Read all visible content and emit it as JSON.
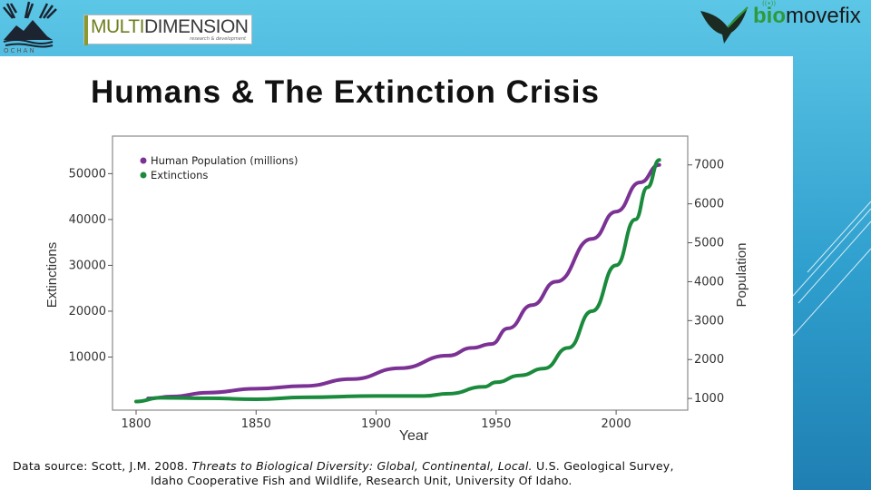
{
  "header": {
    "left_logo_caption": "OCHAN",
    "multidimension_logo": {
      "part1": "MULTI",
      "part2": "DIMENSION",
      "tagline": "research & development"
    },
    "biomovefix_logo": {
      "bio": "bio",
      "rest": "movefix"
    }
  },
  "slide": {
    "title": "Humans & The Extinction Crisis",
    "source_prefix": "Data source: Scott, J.M. 2008. ",
    "source_italic": "Threats to Biological Diversity: Global, Continental, Local.",
    "source_suffix": " U.S. Geological Survey,",
    "source_line2": "Idaho Cooperative Fish and Wildlife, Research Unit, University Of Idaho."
  },
  "chart_data": {
    "type": "line",
    "title": "",
    "xlabel": "Year",
    "ylabel_left": "Extinctions",
    "ylabel_right": "Population",
    "xlim": [
      1800,
      2020
    ],
    "ylim_left": [
      0,
      57000
    ],
    "ylim_right": [
      700,
      7600
    ],
    "x_ticks": [
      "1800",
      "1850",
      "1900",
      "1950",
      "2000"
    ],
    "y_left_ticks": [
      "10000",
      "20000",
      "30000",
      "40000",
      "50000"
    ],
    "y_right_ticks": [
      "1000",
      "2000",
      "3000",
      "4000",
      "5000",
      "6000",
      "7000"
    ],
    "legend_position": "top-left",
    "series": [
      {
        "name": "Human Population (millions)",
        "axis": "right",
        "color": "#7b3294",
        "x": [
          1805,
          1815,
          1830,
          1850,
          1870,
          1890,
          1910,
          1930,
          1940,
          1948,
          1955,
          1965,
          1975,
          1990,
          2000,
          2010,
          2018
        ],
        "values": [
          1000,
          1050,
          1150,
          1250,
          1320,
          1500,
          1780,
          2100,
          2300,
          2400,
          2800,
          3400,
          4000,
          5100,
          5800,
          6550,
          7000
        ]
      },
      {
        "name": "Extinctions",
        "axis": "left",
        "color": "#1a8a3c",
        "x": [
          1800,
          1810,
          1830,
          1850,
          1870,
          1900,
          1920,
          1930,
          1945,
          1950,
          1960,
          1970,
          1980,
          1990,
          2000,
          2008,
          2013,
          2018
        ],
        "values": [
          300,
          1100,
          1000,
          800,
          1200,
          1500,
          1500,
          2000,
          3500,
          4500,
          6000,
          7500,
          12000,
          20000,
          30000,
          40000,
          47000,
          53000
        ]
      }
    ]
  }
}
